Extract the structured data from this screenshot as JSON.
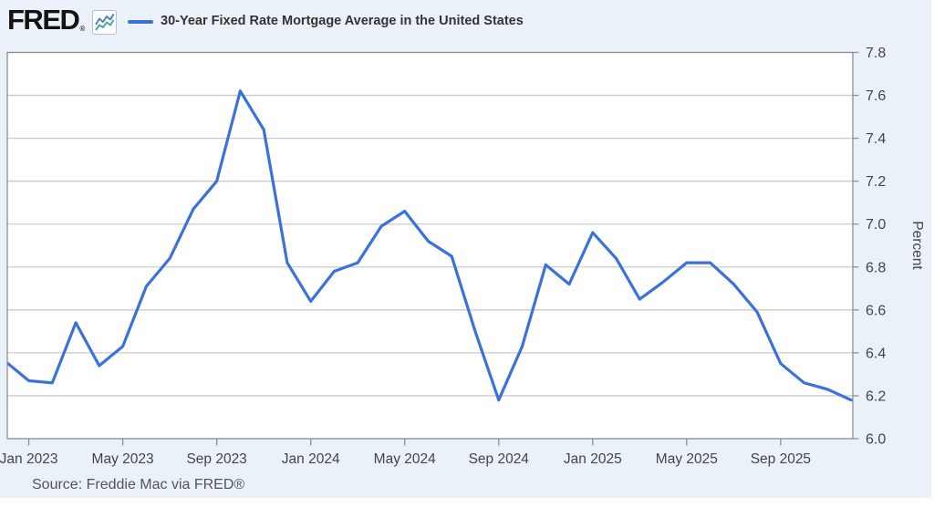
{
  "header": {
    "logo": "FRED",
    "registered_mark": "®",
    "series_title": "30-Year Fixed Rate Mortgage Average in the United States"
  },
  "source": {
    "text": "Source: Freddie Mac via FRED®"
  },
  "colors": {
    "canvas_bg": "#ebf1f9",
    "plot_bg": "#ffffff",
    "line": "#3a72d9",
    "gridline": "#cbcbcb",
    "plot_border": "#8f8f8f",
    "tick_text": "#444444",
    "title_text": "#333333",
    "icon_blue": "#4f81bd",
    "icon_teal": "#45a89e"
  },
  "chart_data": {
    "type": "line",
    "title": "30-Year Fixed Rate Mortgage Average in the United States",
    "ylabel": "Percent",
    "xlabel": "",
    "grid": true,
    "legend_position": "top-left",
    "ylim": [
      6.0,
      7.8
    ],
    "y_ticks": [
      7.8,
      7.6,
      7.4,
      7.2,
      7.0,
      6.8,
      6.6,
      6.4,
      6.2,
      6.0
    ],
    "x": [
      "Dec 2022",
      "Jan 2023",
      "Feb 2023",
      "Mar 2023",
      "Apr 2023",
      "May 2023",
      "Jun 2023",
      "Jul 2023",
      "Aug 2023",
      "Sep 2023",
      "Oct 2023",
      "Nov 2023",
      "Dec 2023",
      "Jan 2024",
      "Feb 2024",
      "Mar 2024",
      "Apr 2024",
      "May 2024",
      "Jun 2024",
      "Jul 2024",
      "Aug 2024",
      "Sep 2024",
      "Oct 2024",
      "Nov 2024",
      "Dec 2024",
      "Jan 2025",
      "Feb 2025",
      "Mar 2025",
      "Apr 2025",
      "May 2025",
      "Jun 2025",
      "Jul 2025",
      "Aug 2025",
      "Sep 2025",
      "Oct 2025",
      "Nov 2025",
      "Dec 2025"
    ],
    "values": [
      6.36,
      6.27,
      6.26,
      6.54,
      6.34,
      6.43,
      6.71,
      6.84,
      7.07,
      7.2,
      7.62,
      7.44,
      6.82,
      6.64,
      6.78,
      6.82,
      6.99,
      7.06,
      6.92,
      6.85,
      6.5,
      6.18,
      6.43,
      6.81,
      6.72,
      6.96,
      6.84,
      6.65,
      6.73,
      6.82,
      6.82,
      6.72,
      6.59,
      6.35,
      6.26,
      6.23,
      6.18
    ],
    "x_tick_labels": [
      "Jan 2023",
      "May 2023",
      "Sep 2023",
      "Jan 2024",
      "May 2024",
      "Sep 2024",
      "Jan 2025",
      "May 2025",
      "Sep 2025"
    ],
    "x_tick_indices": [
      1,
      5,
      9,
      13,
      17,
      21,
      25,
      29,
      33
    ],
    "series_name": "30-Year Fixed Rate Mortgage Average in the United States",
    "units": "Percent"
  }
}
